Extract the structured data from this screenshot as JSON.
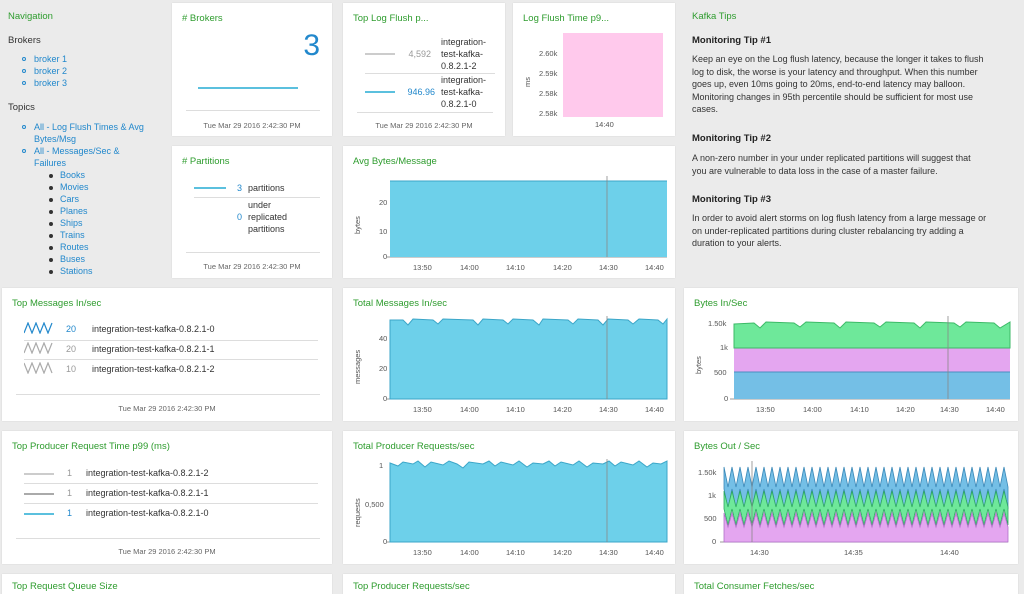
{
  "nav": {
    "title": "Navigation",
    "brokers_heading": "Brokers",
    "brokers": [
      "broker 1",
      "broker 2",
      "broker 3"
    ],
    "topics_heading": "Topics",
    "topics_all1_line1": "All - Log Flush Times & Avg",
    "topics_all1_line2": "Bytes/Msg",
    "topics_all2_line1": "All - Messages/Sec &",
    "topics_all2_line2": "Failures",
    "topics": [
      "Books",
      "Movies",
      "Cars",
      "Planes",
      "Ships",
      "Trains",
      "Routes",
      "Buses",
      "Stations"
    ]
  },
  "timestamp": "Tue Mar 29 2016 2:42:30 PM",
  "brokers_panel": {
    "title": "# Brokers",
    "value": "3"
  },
  "flush_panel": {
    "title": "Top Log Flush p...",
    "rows": [
      {
        "value": "4,592",
        "name1": "integration-",
        "name2": "test-kafka-",
        "name3": "0.8.2.1-2",
        "color": "#cccccc"
      },
      {
        "value": "946.96",
        "name1": "integration-",
        "name2": "test-kafka-",
        "name3": "0.8.2.1-0",
        "color": "#5bc0de"
      }
    ]
  },
  "flush_time_panel": {
    "title": "Log Flush Time p9...",
    "ylabel": "ms",
    "yticks": [
      "2.60k",
      "2.59k",
      "2.58k",
      "2.58k"
    ],
    "xticks": [
      "14:40"
    ],
    "color": "#ffc9ec"
  },
  "tips": {
    "title": "Kafka Tips",
    "items": [
      {
        "heading": "Monitoring Tip #1",
        "lines": [
          "Keep an eye on the Log flush latency, because the longer it takes to flush",
          "log to disk, the worse is your latency and throughput. When this number",
          "goes up, even 10ms going to 20ms, end-to-end latency may balloon.",
          "Monitoring changes in 95th percentile should be sufficient for most use",
          "cases."
        ]
      },
      {
        "heading": "Monitoring Tip #2",
        "lines": [
          "A non-zero number in your under replicated partitions will suggest that",
          "you are vulnerable to data loss in the case of a master failure."
        ]
      },
      {
        "heading": "Monitoring Tip #3",
        "lines": [
          "In order to avoid alert storms on log flush latency from a large message or",
          "on under-replicated partitions during cluster rebalancing try adding a",
          "duration to your alerts."
        ]
      }
    ]
  },
  "partitions_panel": {
    "title": "# Partitions",
    "rows": [
      {
        "value": "3",
        "label1": "partitions",
        "label2": "",
        "label3": ""
      },
      {
        "value": "0",
        "label1": "under",
        "label2": "replicated",
        "label3": "partitions"
      }
    ]
  },
  "avg_bytes_panel": {
    "title": "Avg Bytes/Message",
    "ylabel": "bytes",
    "yticks": [
      "20",
      "10",
      "0"
    ],
    "xticks": [
      "13:50",
      "14:00",
      "14:10",
      "14:20",
      "14:30",
      "14:40"
    ]
  },
  "top_messages_panel": {
    "title": "Top Messages In/sec",
    "rows": [
      {
        "value": "20",
        "name": "integration-test-kafka-0.8.2.1-0",
        "color": "#2288cc"
      },
      {
        "value": "20",
        "name": "integration-test-kafka-0.8.2.1-1",
        "color": "#999999"
      },
      {
        "value": "10",
        "name": "integration-test-kafka-0.8.2.1-2",
        "color": "#999999"
      }
    ]
  },
  "total_messages_panel": {
    "title": "Total Messages In/sec",
    "ylabel": "messages",
    "yticks": [
      "40",
      "20",
      "0"
    ],
    "xticks": [
      "13:50",
      "14:00",
      "14:10",
      "14:20",
      "14:30",
      "14:40"
    ]
  },
  "bytes_in_panel": {
    "title": "Bytes In/Sec",
    "ylabel": "bytes",
    "yticks": [
      "1.50k",
      "1k",
      "500",
      "0"
    ],
    "xticks": [
      "13:50",
      "14:00",
      "14:10",
      "14:20",
      "14:30",
      "14:40"
    ]
  },
  "producer_time_panel": {
    "title": "Top Producer Request Time p99 (ms)",
    "rows": [
      {
        "value": "1",
        "name": "integration-test-kafka-0.8.2.1-2",
        "color": "#cccccc"
      },
      {
        "value": "1",
        "name": "integration-test-kafka-0.8.2.1-1",
        "color": "#aaaaaa"
      },
      {
        "value": "1",
        "name": "integration-test-kafka-0.8.2.1-0",
        "color": "#5bc0de"
      }
    ]
  },
  "total_producer_panel": {
    "title": "Total Producer Requests/sec",
    "ylabel": "requests",
    "yticks": [
      "1",
      "0,500",
      "0"
    ],
    "xticks": [
      "13:50",
      "14:00",
      "14:10",
      "14:20",
      "14:30",
      "14:40"
    ]
  },
  "bytes_out_panel": {
    "title": "Bytes Out / Sec",
    "yticks": [
      "1.50k",
      "1k",
      "500",
      "0"
    ],
    "xticks": [
      "14:30",
      "14:35",
      "14:40"
    ]
  },
  "bottom": {
    "queue_title": "Top Request Queue Size",
    "producer_title": "Top Producer Requests/sec",
    "consumer_title": "Total Consumer Fetches/sec"
  },
  "colors": {
    "area_blue": "#6dd0ea",
    "area_green": "#6ee89a",
    "area_pink": "#e4a6f0",
    "area_blue2": "#74bfe6",
    "accent_green": "#2e9c2e",
    "link_blue": "#2288cc"
  }
}
